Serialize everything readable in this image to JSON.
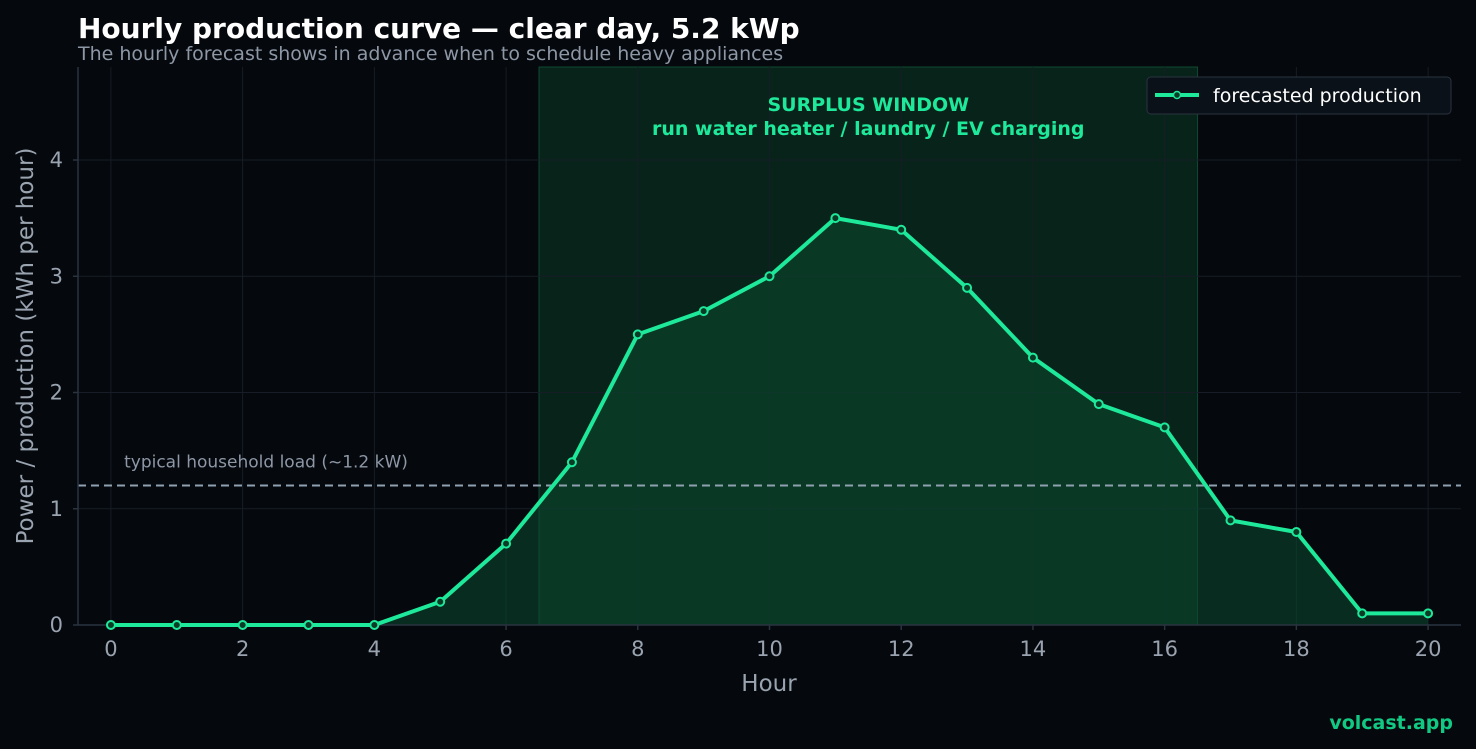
{
  "chart_data": {
    "type": "line",
    "title": "Hourly production curve — clear day, 5.2 kWp",
    "subtitle": "The hourly forecast shows in advance when to schedule heavy appliances",
    "xlabel": "Hour",
    "ylabel": "Power / production (kWh per hour)",
    "xlim": [
      -0.5,
      20.5
    ],
    "ylim": [
      0,
      4.8
    ],
    "x_ticks": [
      0,
      2,
      4,
      6,
      8,
      10,
      12,
      14,
      16,
      18,
      20
    ],
    "y_ticks": [
      0,
      1,
      2,
      3,
      4
    ],
    "grid": true,
    "legend_position": "top-right",
    "series": [
      {
        "name": "forecasted production",
        "color": "#1ee89a",
        "x": [
          0,
          1,
          2,
          3,
          4,
          5,
          6,
          7,
          8,
          9,
          10,
          11,
          12,
          13,
          14,
          15,
          16,
          17,
          18,
          19,
          20
        ],
        "y": [
          0,
          0,
          0,
          0,
          0,
          0.2,
          0.7,
          1.4,
          2.5,
          2.7,
          3.0,
          3.5,
          3.4,
          2.9,
          2.3,
          1.9,
          1.7,
          0.9,
          0.8,
          0.1,
          0.1
        ]
      }
    ],
    "reference_line": {
      "y": 1.2,
      "label": "typical household load (~1.2 kW)",
      "color": "#8fa0b0"
    },
    "highlight_window": {
      "x_start": 6.5,
      "x_end": 16.5,
      "label_line1": "SURPLUS WINDOW",
      "label_line2": "run water heater / laundry / EV charging",
      "color": "#0b3a26"
    }
  },
  "footer": {
    "brand": "volcast.app"
  },
  "colors": {
    "background": "#05080c",
    "accent": "#1ee89a",
    "grid": "#161d26"
  }
}
